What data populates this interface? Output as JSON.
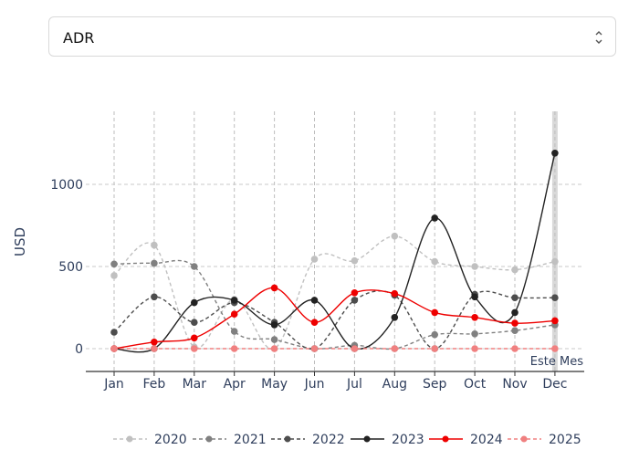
{
  "selector": {
    "value": "ADR"
  },
  "chart_data": {
    "type": "line",
    "ylabel": "USD",
    "categories": [
      "Jan",
      "Feb",
      "Mar",
      "Apr",
      "May",
      "Jun",
      "Jul",
      "Aug",
      "Sep",
      "Oct",
      "Nov",
      "Dec"
    ],
    "yticks": [
      0,
      500,
      1000
    ],
    "ylim": [
      -130,
      1420
    ],
    "grid": true,
    "legend_position": "bottom",
    "annotation": "Este Mes",
    "highlight_category": "Dec",
    "series": [
      {
        "name": "2020",
        "color": "#c0c0c0",
        "dash": "dashed",
        "values": [
          445,
          630,
          10,
          300,
          0,
          545,
          535,
          685,
          530,
          500,
          480,
          530
        ]
      },
      {
        "name": "2021",
        "color": "#808080",
        "dash": "dashed",
        "values": [
          515,
          520,
          500,
          105,
          55,
          0,
          20,
          0,
          85,
          90,
          110,
          145
        ]
      },
      {
        "name": "2022",
        "color": "#4d4d4d",
        "dash": "dashed",
        "values": [
          100,
          315,
          160,
          280,
          160,
          0,
          295,
          325,
          0,
          330,
          310,
          310
        ]
      },
      {
        "name": "2023",
        "color": "#222222",
        "dash": "solid",
        "values": [
          0,
          0,
          280,
          295,
          145,
          295,
          0,
          190,
          795,
          315,
          220,
          1190
        ]
      },
      {
        "name": "2024",
        "color": "#ee0000",
        "dash": "solid",
        "values": [
          0,
          40,
          65,
          210,
          370,
          160,
          340,
          335,
          220,
          190,
          155,
          170
        ]
      },
      {
        "name": "2025",
        "color": "#f08080",
        "dash": "dashed",
        "values": [
          0,
          0,
          0,
          0,
          0,
          0,
          0,
          0,
          0,
          0,
          0,
          0
        ]
      }
    ]
  }
}
